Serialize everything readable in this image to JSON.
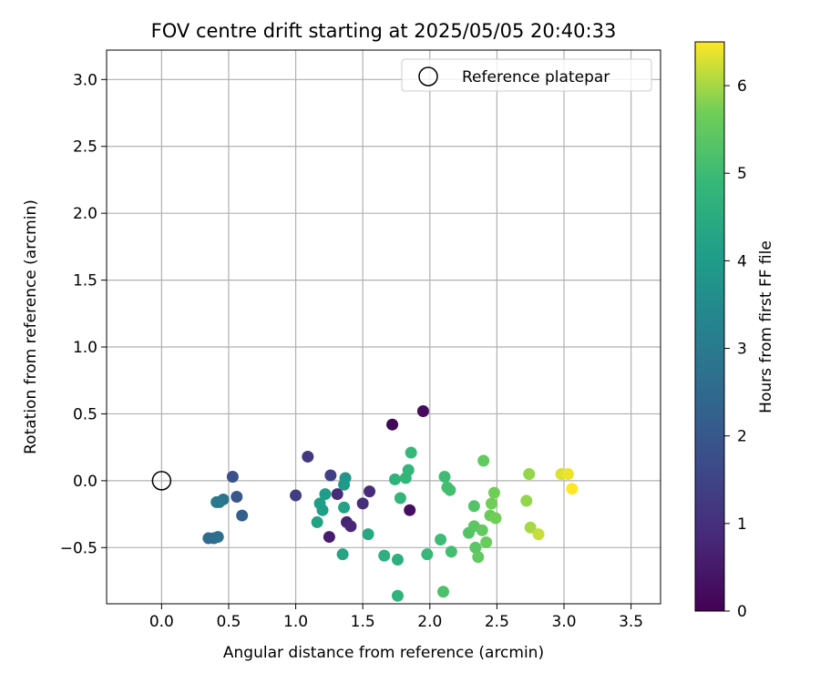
{
  "chart_data": {
    "type": "scatter",
    "title": "FOV centre drift starting at 2025/05/05 20:40:33",
    "xlabel": "Angular distance from reference (arcmin)",
    "ylabel": "Rotation from reference (arcmin)",
    "xlim": [
      -0.41,
      3.72
    ],
    "ylim": [
      -0.92,
      3.22
    ],
    "xticks": [
      0.0,
      0.5,
      1.0,
      1.5,
      2.0,
      2.5,
      3.0,
      3.5
    ],
    "xtick_labels": [
      "0.0",
      "0.5",
      "1.0",
      "1.5",
      "2.0",
      "2.5",
      "3.0",
      "3.5"
    ],
    "yticks": [
      -0.5,
      0.0,
      0.5,
      1.0,
      1.5,
      2.0,
      2.5,
      3.0
    ],
    "ytick_labels": [
      "−0.5",
      "0.0",
      "0.5",
      "1.0",
      "1.5",
      "2.0",
      "2.5",
      "3.0"
    ],
    "grid": true,
    "legend": {
      "placement": "top-right",
      "entries": [
        {
          "label": "Reference platepar",
          "marker": "open-circle",
          "x": 0.0,
          "y": 0.0
        }
      ]
    },
    "colorbar": {
      "label": "Hours from first FF file",
      "range": [
        0,
        6.5
      ],
      "ticks": [
        0,
        1,
        2,
        3,
        4,
        5,
        6
      ],
      "tick_labels": [
        "0",
        "1",
        "2",
        "3",
        "4",
        "5",
        "6"
      ],
      "colormap": "viridis"
    },
    "points": [
      {
        "x": 1.72,
        "y": 0.42,
        "c": 0.1
      },
      {
        "x": 1.95,
        "y": 0.52,
        "c": 0.2
      },
      {
        "x": 1.85,
        "y": -0.22,
        "c": 0.3
      },
      {
        "x": 1.25,
        "y": -0.42,
        "c": 0.6
      },
      {
        "x": 1.38,
        "y": -0.31,
        "c": 0.7
      },
      {
        "x": 1.41,
        "y": -0.34,
        "c": 0.8
      },
      {
        "x": 1.31,
        "y": -0.1,
        "c": 0.9
      },
      {
        "x": 1.55,
        "y": -0.08,
        "c": 0.9
      },
      {
        "x": 1.5,
        "y": -0.17,
        "c": 1.0
      },
      {
        "x": 1.09,
        "y": 0.18,
        "c": 1.2
      },
      {
        "x": 1.0,
        "y": -0.11,
        "c": 1.3
      },
      {
        "x": 1.26,
        "y": 0.04,
        "c": 1.4
      },
      {
        "x": 0.53,
        "y": 0.03,
        "c": 1.8
      },
      {
        "x": 0.56,
        "y": -0.12,
        "c": 2.0
      },
      {
        "x": 0.6,
        "y": -0.26,
        "c": 2.2
      },
      {
        "x": 0.35,
        "y": -0.43,
        "c": 2.5
      },
      {
        "x": 0.39,
        "y": -0.43,
        "c": 2.6
      },
      {
        "x": 0.42,
        "y": -0.42,
        "c": 2.7
      },
      {
        "x": 0.46,
        "y": -0.14,
        "c": 2.8
      },
      {
        "x": 0.43,
        "y": -0.16,
        "c": 2.9
      },
      {
        "x": 0.41,
        "y": -0.16,
        "c": 3.0
      },
      {
        "x": 1.37,
        "y": 0.02,
        "c": 3.8
      },
      {
        "x": 1.36,
        "y": -0.03,
        "c": 3.9
      },
      {
        "x": 1.22,
        "y": -0.1,
        "c": 4.0
      },
      {
        "x": 1.18,
        "y": -0.17,
        "c": 4.1
      },
      {
        "x": 1.2,
        "y": -0.22,
        "c": 4.1
      },
      {
        "x": 1.16,
        "y": -0.31,
        "c": 4.2
      },
      {
        "x": 1.36,
        "y": -0.2,
        "c": 4.2
      },
      {
        "x": 1.35,
        "y": -0.55,
        "c": 4.3
      },
      {
        "x": 1.54,
        "y": -0.4,
        "c": 4.4
      },
      {
        "x": 1.66,
        "y": -0.56,
        "c": 4.6
      },
      {
        "x": 1.76,
        "y": -0.59,
        "c": 4.6
      },
      {
        "x": 1.76,
        "y": -0.86,
        "c": 4.7
      },
      {
        "x": 1.74,
        "y": 0.01,
        "c": 4.7
      },
      {
        "x": 1.82,
        "y": 0.02,
        "c": 4.8
      },
      {
        "x": 1.84,
        "y": 0.08,
        "c": 4.8
      },
      {
        "x": 1.86,
        "y": 0.21,
        "c": 4.9
      },
      {
        "x": 1.78,
        "y": -0.13,
        "c": 4.8
      },
      {
        "x": 1.98,
        "y": -0.55,
        "c": 4.9
      },
      {
        "x": 2.08,
        "y": -0.44,
        "c": 5.0
      },
      {
        "x": 2.11,
        "y": 0.03,
        "c": 5.0
      },
      {
        "x": 2.13,
        "y": -0.05,
        "c": 5.1
      },
      {
        "x": 2.15,
        "y": -0.07,
        "c": 5.1
      },
      {
        "x": 2.16,
        "y": -0.53,
        "c": 5.1
      },
      {
        "x": 2.1,
        "y": -0.83,
        "c": 5.2
      },
      {
        "x": 2.29,
        "y": -0.39,
        "c": 5.3
      },
      {
        "x": 2.33,
        "y": -0.19,
        "c": 5.3
      },
      {
        "x": 2.33,
        "y": -0.34,
        "c": 5.4
      },
      {
        "x": 2.34,
        "y": -0.5,
        "c": 5.4
      },
      {
        "x": 2.36,
        "y": -0.57,
        "c": 5.5
      },
      {
        "x": 2.39,
        "y": -0.37,
        "c": 5.5
      },
      {
        "x": 2.4,
        "y": 0.15,
        "c": 5.5
      },
      {
        "x": 2.42,
        "y": -0.46,
        "c": 5.6
      },
      {
        "x": 2.45,
        "y": -0.26,
        "c": 5.6
      },
      {
        "x": 2.46,
        "y": -0.17,
        "c": 5.7
      },
      {
        "x": 2.48,
        "y": -0.09,
        "c": 5.7
      },
      {
        "x": 2.49,
        "y": -0.28,
        "c": 5.7
      },
      {
        "x": 2.72,
        "y": -0.15,
        "c": 5.9
      },
      {
        "x": 2.74,
        "y": 0.05,
        "c": 5.9
      },
      {
        "x": 2.75,
        "y": -0.35,
        "c": 6.0
      },
      {
        "x": 2.81,
        "y": -0.4,
        "c": 6.2
      },
      {
        "x": 2.98,
        "y": 0.05,
        "c": 6.3
      },
      {
        "x": 3.03,
        "y": 0.05,
        "c": 6.4
      },
      {
        "x": 3.06,
        "y": -0.06,
        "c": 6.5
      }
    ]
  }
}
